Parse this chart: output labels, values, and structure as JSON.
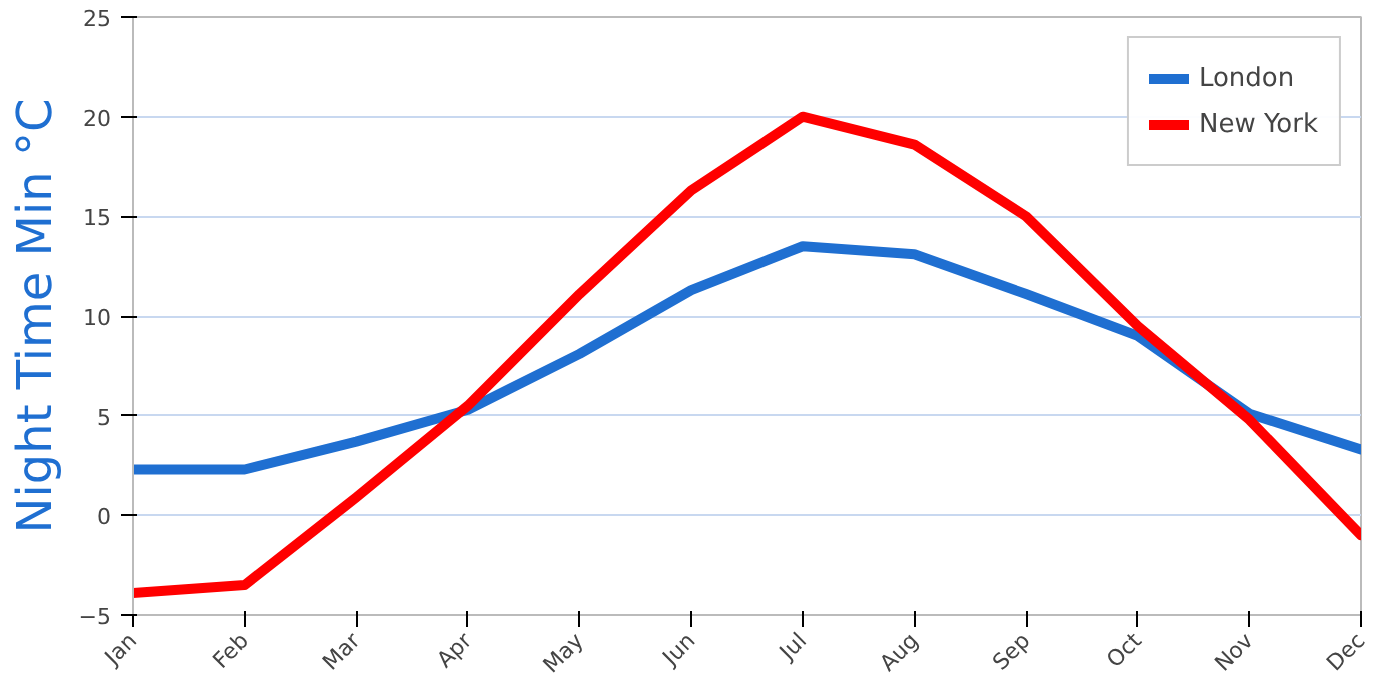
{
  "chart_data": {
    "type": "line",
    "ylabel": "Night Time Min °C",
    "categories": [
      "Jan",
      "Feb",
      "Mar",
      "Apr",
      "May",
      "Jun",
      "Jul",
      "Aug",
      "Sep",
      "Oct",
      "Nov",
      "Dec"
    ],
    "series": [
      {
        "name": "London",
        "color": "#1f6fd1",
        "values": [
          2.3,
          2.3,
          3.7,
          5.3,
          8.1,
          11.3,
          13.5,
          13.1,
          11.1,
          9.0,
          5.1,
          3.3
        ]
      },
      {
        "name": "New York",
        "color": "#ff0000",
        "values": [
          -3.9,
          -3.5,
          0.9,
          5.5,
          11.1,
          16.3,
          20.0,
          18.6,
          15.0,
          9.5,
          4.8,
          -1.0
        ]
      }
    ],
    "ylim": [
      -5,
      25
    ],
    "yticks": [
      -5,
      0,
      5,
      10,
      15,
      20,
      25
    ],
    "grid": "y",
    "legend": "top right"
  }
}
